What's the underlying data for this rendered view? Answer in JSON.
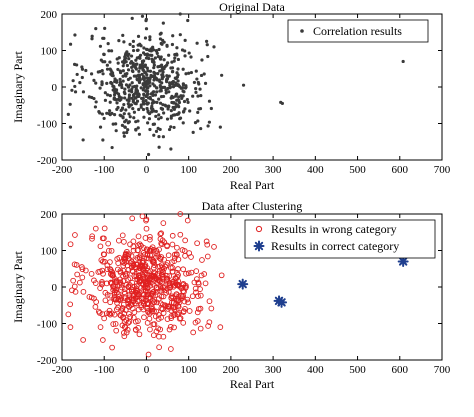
{
  "colors": {
    "axis": "#000000",
    "original_points": "#3a3a3a",
    "wrong_category": "#e02020",
    "correct_category": "#1f3f8f"
  },
  "chart_data": [
    {
      "type": "scatter",
      "title": "Original Data",
      "xlabel": "Real Part",
      "ylabel": "Imaginary Part",
      "xlim": [
        -200,
        700
      ],
      "ylim": [
        -200,
        200
      ],
      "xticks": [
        "-200",
        "-100",
        "0",
        "100",
        "200",
        "300",
        "400",
        "500",
        "600",
        "700"
      ],
      "yticks": [
        "200",
        "100",
        "0",
        "-100",
        "-200"
      ],
      "grid": false,
      "legend_position": "top-right",
      "series": [
        {
          "name": "Correlation results",
          "marker": "dot",
          "cluster": {
            "center": [
              0,
              10
            ],
            "spread": [
              70,
              68
            ],
            "x_range": [
              -185,
              180
            ],
            "y_range": [
              -190,
              200
            ],
            "count": 650
          },
          "points": [
            [
              230,
              5
            ],
            [
              318,
              -42
            ],
            [
              322,
              -45
            ],
            [
              608,
              70
            ],
            [
              175,
              -110
            ],
            [
              160,
              110
            ],
            [
              -180,
              -110
            ],
            [
              -185,
              -75
            ],
            [
              -150,
              -145
            ],
            [
              5,
              -185
            ],
            [
              30,
              -165
            ],
            [
              80,
              200
            ],
            [
              40,
              175
            ],
            [
              -120,
              160
            ],
            [
              120,
              120
            ],
            [
              140,
              10
            ]
          ]
        }
      ]
    },
    {
      "type": "scatter",
      "title": "Data after Clustering",
      "xlabel": "Real Part",
      "ylabel": "Imaginary Part",
      "xlim": [
        -200,
        700
      ],
      "ylim": [
        -200,
        200
      ],
      "xticks": [
        "-200",
        "-100",
        "0",
        "100",
        "200",
        "300",
        "400",
        "500",
        "600",
        "700"
      ],
      "yticks": [
        "200",
        "100",
        "0",
        "-100",
        "-200"
      ],
      "grid": false,
      "legend_position": "top-right",
      "series": [
        {
          "name": "Results in wrong category",
          "marker": "circle",
          "cluster": {
            "center": [
              0,
              10
            ],
            "spread": [
              70,
              68
            ],
            "x_range": [
              -185,
              180
            ],
            "y_range": [
              -190,
              200
            ],
            "count": 650
          },
          "points": [
            [
              175,
              -110
            ],
            [
              160,
              110
            ],
            [
              -180,
              -110
            ],
            [
              -185,
              -75
            ],
            [
              -150,
              -145
            ],
            [
              5,
              -185
            ],
            [
              30,
              -165
            ],
            [
              80,
              200
            ],
            [
              40,
              175
            ],
            [
              -120,
              160
            ],
            [
              120,
              120
            ],
            [
              140,
              10
            ]
          ]
        },
        {
          "name": "Results in correct category",
          "marker": "asterisk",
          "points": [
            [
              228,
              8
            ],
            [
              314,
              -38
            ],
            [
              320,
              -42
            ],
            [
              608,
              70
            ]
          ]
        }
      ]
    }
  ]
}
